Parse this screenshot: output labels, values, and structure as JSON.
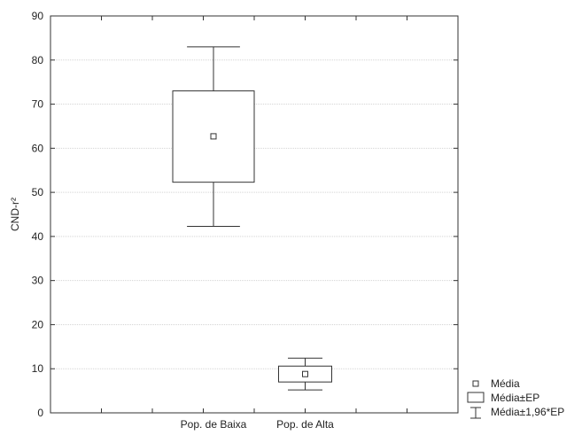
{
  "chart_data": {
    "type": "boxplot",
    "ylabel": "CND-r²",
    "ylim": [
      0,
      90
    ],
    "yticks": [
      0,
      10,
      20,
      30,
      40,
      50,
      60,
      70,
      80,
      90
    ],
    "categories": [
      "Pop. de Baixa",
      "Pop. de Alta"
    ],
    "boxes": [
      {
        "category": "Pop. de Baixa",
        "mean": 62.7,
        "se_low": 52.3,
        "se_high": 73.0,
        "ci_low": 42.3,
        "ci_high": 83.0
      },
      {
        "category": "Pop. de Alta",
        "mean": 8.8,
        "se_low": 7.0,
        "se_high": 10.6,
        "ci_low": 5.2,
        "ci_high": 12.4
      }
    ],
    "grid": true,
    "legend": {
      "placement": "bottom-right",
      "items": [
        "Média",
        "Média±EP",
        "Média±1,96*EP"
      ]
    }
  }
}
